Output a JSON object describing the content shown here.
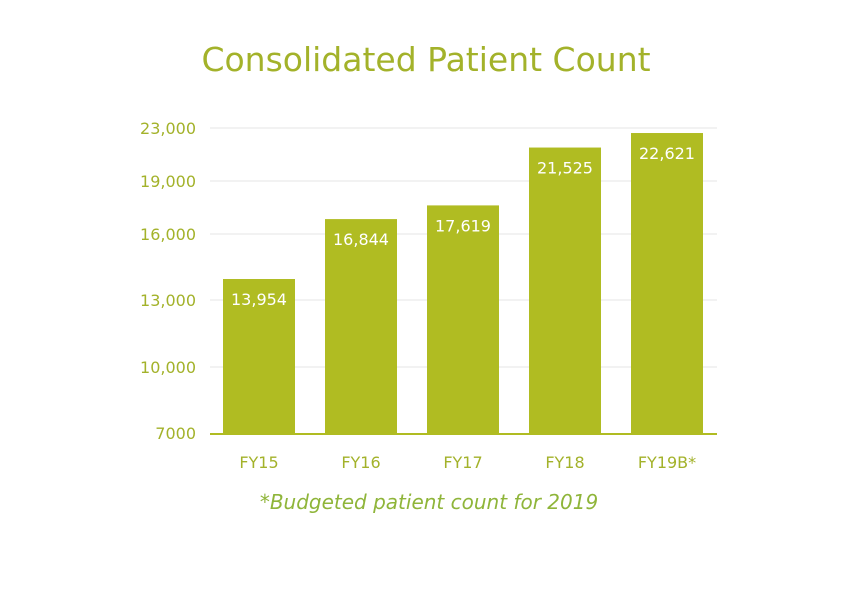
{
  "chart_data": {
    "type": "bar",
    "title": "Consolidated Patient Count",
    "xlabel": "",
    "ylabel": "",
    "categories": [
      "FY15",
      "FY16",
      "FY17",
      "FY18",
      "FY19B*"
    ],
    "values": [
      13954,
      16844,
      17619,
      21525,
      22621
    ],
    "data_labels": [
      "13,954",
      "16,844",
      "17,619",
      "21,525",
      "22,621"
    ],
    "y_ticks": [
      {
        "value": 7000,
        "label": "7000"
      },
      {
        "value": 10000,
        "label": "10,000"
      },
      {
        "value": 13000,
        "label": "13,000"
      },
      {
        "value": 16000,
        "label": "16,000"
      },
      {
        "value": 19000,
        "label": "19,000"
      },
      {
        "value": 23000,
        "label": "23,000"
      }
    ],
    "ylim": [
      7000,
      23000
    ],
    "grid": true,
    "legend": "none",
    "footnote": "*Budgeted patient count for 2019",
    "colors": {
      "bar": "#b0bc22",
      "text": "#a3b22a",
      "label_inside": "#ffffff",
      "grid": "#e6e6e6",
      "axis": "#b0bc22"
    }
  }
}
